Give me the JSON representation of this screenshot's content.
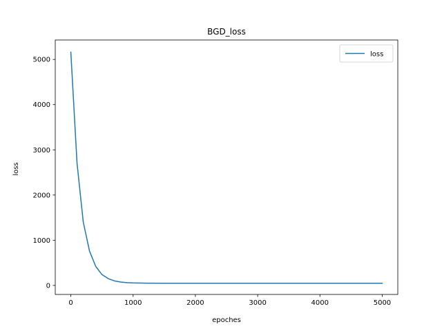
{
  "chart_data": {
    "type": "line",
    "title": "BGD_loss",
    "xlabel": "epoches",
    "ylabel": "loss",
    "xlim": [
      -250,
      5250
    ],
    "ylim": [
      -200,
      5430
    ],
    "xticks": [
      0,
      1000,
      2000,
      3000,
      4000,
      5000
    ],
    "xtick_labels": [
      "0",
      "1000",
      "2000",
      "3000",
      "4000",
      "5000"
    ],
    "yticks": [
      0,
      1000,
      2000,
      3000,
      4000,
      5000
    ],
    "ytick_labels": [
      "0",
      "1000",
      "2000",
      "3000",
      "4000",
      "5000"
    ],
    "grid": false,
    "legend_position": "upper right",
    "series": [
      {
        "name": "loss",
        "color": "#1f77b4",
        "x": [
          0,
          100,
          200,
          300,
          400,
          500,
          600,
          700,
          800,
          900,
          1000,
          1200,
          1500,
          2000,
          2500,
          3000,
          3500,
          4000,
          4500,
          5000
        ],
        "y": [
          5160,
          2700,
          1400,
          760,
          420,
          240,
          150,
          100,
          75,
          62,
          55,
          50,
          48,
          48,
          48,
          48,
          48,
          48,
          48,
          48
        ]
      }
    ]
  }
}
